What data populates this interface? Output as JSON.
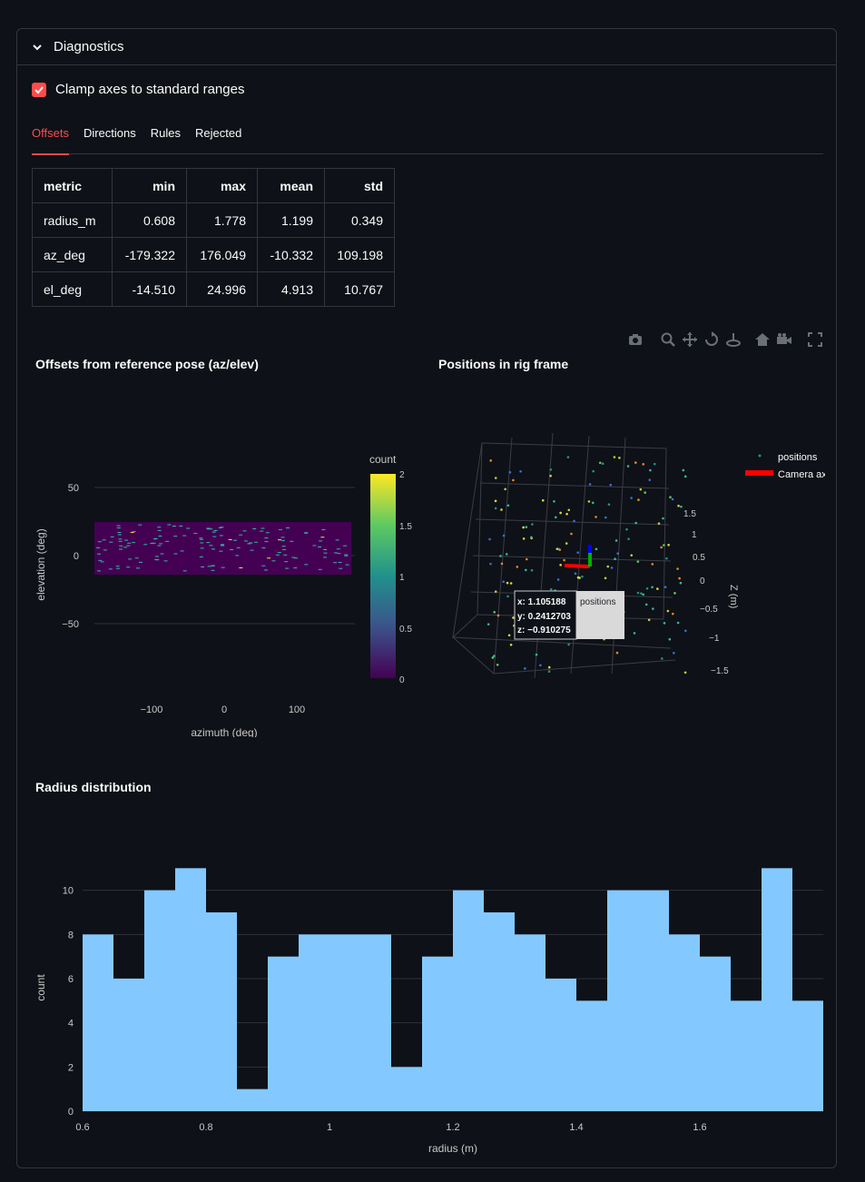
{
  "expander": {
    "title": "Diagnostics"
  },
  "clamp": {
    "label": "Clamp axes to standard ranges",
    "checked": true
  },
  "tabs": [
    {
      "label": "Offsets",
      "active": true
    },
    {
      "label": "Directions",
      "active": false
    },
    {
      "label": "Rules",
      "active": false
    },
    {
      "label": "Rejected",
      "active": false
    }
  ],
  "stats_table": {
    "headers": [
      "metric",
      "min",
      "max",
      "mean",
      "std"
    ],
    "rows": [
      [
        "radius_m",
        "0.608",
        "1.778",
        "1.199",
        "0.349"
      ],
      [
        "az_deg",
        "-179.322",
        "176.049",
        "-10.332",
        "109.198"
      ],
      [
        "el_deg",
        "-14.510",
        "24.996",
        "4.913",
        "10.767"
      ]
    ]
  },
  "heatmap": {
    "title": "Offsets from reference pose (az/elev)",
    "xlabel": "azimuth (deg)",
    "ylabel": "elevation (deg)",
    "xticks": [
      "−100",
      "0",
      "100"
    ],
    "yticks": [
      "50",
      "0",
      "−50"
    ],
    "colorbar_title": "count",
    "colorbar_ticks": [
      "2",
      "1.5",
      "1",
      "0.5",
      "0"
    ]
  },
  "scatter3d": {
    "title": "Positions in rig frame",
    "legend": [
      "positions",
      "Camera axes"
    ],
    "z_axis_label": "Z (m)",
    "z_ticks": [
      "1.5",
      "1",
      "0.5",
      "0",
      "−0.5",
      "−1",
      "−1.5"
    ],
    "hover": {
      "x": "x: 1.105188",
      "y": "y: 0.2412703",
      "z": "z: −0.910275",
      "trace": "positions"
    }
  },
  "chart_data": {
    "type": "bar",
    "title": "Radius distribution",
    "xlabel": "radius (m)",
    "ylabel": "count",
    "bin_start": 0.6,
    "bin_width": 0.05,
    "values": [
      8,
      6,
      10,
      11,
      9,
      1,
      7,
      8,
      8,
      8,
      2,
      7,
      10,
      9,
      8,
      6,
      5,
      10,
      10,
      8,
      7,
      5,
      11,
      5
    ],
    "xticks": [
      "0.6",
      "0.8",
      "1",
      "1.2",
      "1.4",
      "1.6"
    ],
    "yticks": [
      "0",
      "2",
      "4",
      "6",
      "8",
      "10"
    ],
    "ylim": [
      0,
      12
    ],
    "xlim": [
      0.6,
      1.8
    ],
    "color": "#83c9ff"
  }
}
